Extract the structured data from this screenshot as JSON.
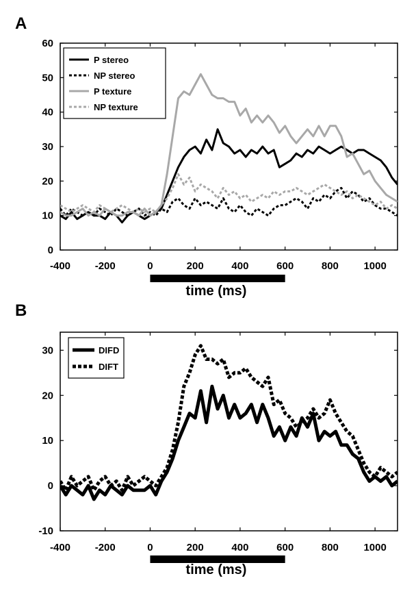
{
  "chart_data": [
    {
      "panel": "A",
      "type": "line",
      "xlabel": "time (ms)",
      "ylabel": "",
      "xlim": [
        -400,
        1100
      ],
      "ylim": [
        0,
        60
      ],
      "xticks": [
        -400,
        -200,
        0,
        200,
        400,
        600,
        800,
        1000
      ],
      "yticks": [
        0,
        10,
        20,
        30,
        40,
        50,
        60
      ],
      "stimulus_bar": [
        0,
        600
      ],
      "legend_position": "top-left",
      "grid": false,
      "x": [
        -400,
        -375,
        -350,
        -325,
        -300,
        -275,
        -250,
        -225,
        -200,
        -175,
        -150,
        -125,
        -100,
        -75,
        -50,
        -25,
        0,
        25,
        50,
        75,
        100,
        125,
        150,
        175,
        200,
        225,
        250,
        275,
        300,
        325,
        350,
        375,
        400,
        425,
        450,
        475,
        500,
        525,
        550,
        575,
        600,
        625,
        650,
        675,
        700,
        725,
        750,
        775,
        800,
        825,
        850,
        875,
        900,
        925,
        950,
        975,
        1000,
        1025,
        1050,
        1075,
        1100
      ],
      "series": [
        {
          "name": "P stereo",
          "color": "#000000",
          "dash": "solid",
          "values": [
            10,
            9,
            11,
            9,
            10,
            11,
            10,
            10,
            9,
            11,
            10,
            8,
            10,
            11,
            10,
            9,
            10,
            11,
            12,
            16,
            20,
            24,
            27,
            29,
            30,
            28,
            32,
            29,
            35,
            31,
            30,
            28,
            29,
            27,
            29,
            28,
            30,
            28,
            29,
            24,
            25,
            26,
            28,
            27,
            29,
            28,
            30,
            29,
            28,
            29,
            30,
            29,
            28,
            29,
            29,
            28,
            27,
            26,
            24,
            21,
            19
          ]
        },
        {
          "name": "NP stereo",
          "color": "#000000",
          "dash": "dotted",
          "values": [
            12,
            10,
            12,
            11,
            10,
            11,
            10,
            12,
            11,
            10,
            12,
            11,
            10,
            11,
            12,
            10,
            11,
            10,
            12,
            11,
            14,
            15,
            13,
            12,
            15,
            13,
            14,
            13,
            12,
            15,
            12,
            11,
            13,
            11,
            10,
            12,
            11,
            10,
            12,
            13,
            13,
            14,
            15,
            14,
            12,
            15,
            14,
            16,
            15,
            17,
            18,
            15,
            17,
            16,
            14,
            15,
            13,
            12,
            12,
            11,
            10
          ]
        },
        {
          "name": "P texture",
          "color": "#a8a8a8",
          "dash": "solid",
          "values": [
            11,
            10,
            10,
            11,
            12,
            10,
            11,
            10,
            12,
            11,
            10,
            10,
            11,
            11,
            10,
            12,
            10,
            11,
            13,
            22,
            33,
            44,
            46,
            45,
            48,
            51,
            48,
            45,
            44,
            44,
            43,
            43,
            39,
            41,
            37,
            39,
            37,
            39,
            37,
            34,
            36,
            33,
            31,
            33,
            35,
            33,
            36,
            33,
            36,
            36,
            33,
            27,
            28,
            25,
            22,
            23,
            20,
            18,
            16,
            15,
            14
          ]
        },
        {
          "name": "NP texture",
          "color": "#a8a8a8",
          "dash": "dotted",
          "values": [
            13,
            12,
            11,
            12,
            13,
            12,
            11,
            13,
            12,
            11,
            12,
            13,
            12,
            11,
            12,
            11,
            12,
            11,
            13,
            15,
            18,
            22,
            19,
            21,
            17,
            19,
            18,
            17,
            15,
            18,
            16,
            17,
            15,
            16,
            14,
            15,
            16,
            15,
            17,
            16,
            17,
            17,
            18,
            17,
            16,
            17,
            18,
            19,
            18,
            17,
            16,
            17,
            15,
            16,
            15,
            14,
            13,
            14,
            12,
            13,
            12
          ]
        }
      ]
    },
    {
      "panel": "B",
      "type": "line",
      "xlabel": "time (ms)",
      "ylabel": "",
      "xlim": [
        -400,
        1100
      ],
      "ylim": [
        -10,
        34
      ],
      "xticks": [
        -400,
        -200,
        0,
        200,
        400,
        600,
        800,
        1000
      ],
      "yticks": [
        -10,
        0,
        10,
        20,
        30
      ],
      "stimulus_bar": [
        0,
        600
      ],
      "legend_position": "top-left",
      "grid": false,
      "x": [
        -400,
        -375,
        -350,
        -325,
        -300,
        -275,
        -250,
        -225,
        -200,
        -175,
        -150,
        -125,
        -100,
        -75,
        -50,
        -25,
        0,
        25,
        50,
        75,
        100,
        125,
        150,
        175,
        200,
        225,
        250,
        275,
        300,
        325,
        350,
        375,
        400,
        425,
        450,
        475,
        500,
        525,
        550,
        575,
        600,
        625,
        650,
        675,
        700,
        725,
        750,
        775,
        800,
        825,
        850,
        875,
        900,
        925,
        950,
        975,
        1000,
        1025,
        1050,
        1075,
        1100
      ],
      "series": [
        {
          "name": "DIFD",
          "color": "#000000",
          "dash": "solid",
          "values": [
            0,
            -2,
            0,
            -1,
            -2,
            0,
            -3,
            -1,
            -2,
            0,
            -1,
            -2,
            0,
            -1,
            -1,
            -1,
            0,
            -2,
            1,
            3,
            6,
            10,
            13,
            16,
            15,
            21,
            14,
            22,
            17,
            20,
            15,
            18,
            15,
            16,
            18,
            14,
            18,
            15,
            11,
            13,
            10,
            13,
            11,
            15,
            13,
            16,
            10,
            12,
            11,
            12,
            9,
            9,
            7,
            6,
            3,
            1,
            2,
            1,
            2,
            0,
            1
          ]
        },
        {
          "name": "DIFT",
          "color": "#000000",
          "dash": "dotted",
          "values": [
            1,
            -1,
            2,
            0,
            1,
            2,
            -1,
            1,
            2,
            0,
            1,
            -1,
            2,
            0,
            1,
            2,
            1,
            0,
            2,
            4,
            8,
            14,
            22,
            25,
            29,
            31,
            28,
            28,
            27,
            28,
            24,
            25,
            25,
            26,
            24,
            23,
            22,
            24,
            18,
            19,
            16,
            15,
            13,
            14,
            15,
            17,
            15,
            16,
            19,
            16,
            14,
            12,
            11,
            8,
            5,
            3,
            2,
            4,
            3,
            2,
            3
          ]
        }
      ]
    }
  ]
}
